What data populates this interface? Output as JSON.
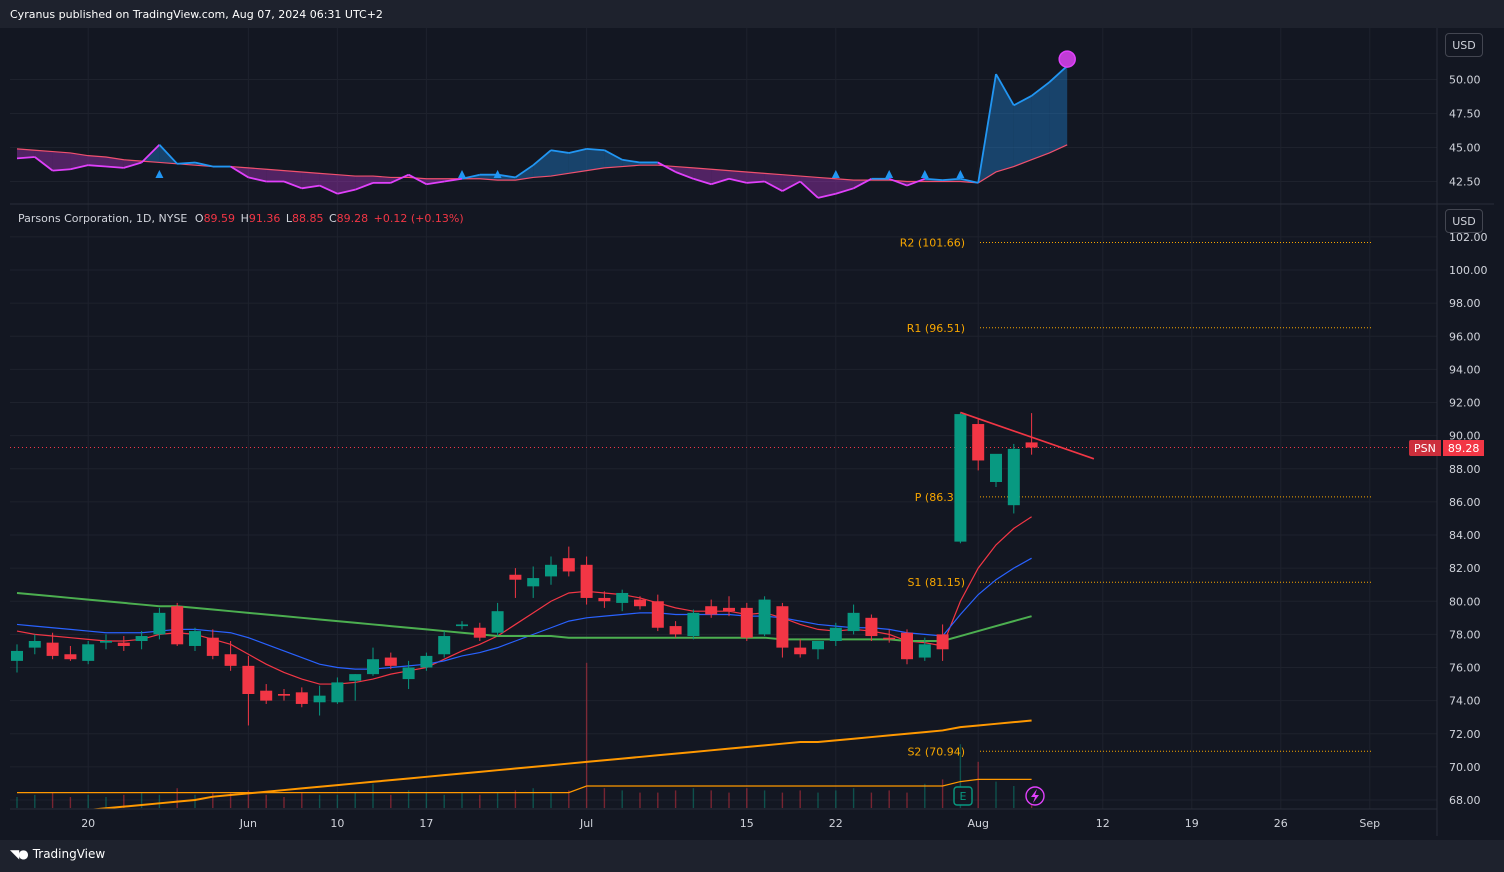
{
  "header": {
    "published": "Cyranus published on TradingView.com, Aug 07, 2024 06:31 UTC+2"
  },
  "footer": {
    "brand": "TradingView"
  },
  "colors": {
    "background": "#131722",
    "up": "#089981",
    "down": "#f23645",
    "pivot": "#f7a600",
    "ma_fast": "#f23645",
    "ma_mid": "#2962ff",
    "ma_slow": "#4caf50",
    "ma_long": "#ff9800",
    "indicator_blue": "#2196f3",
    "indicator_pink": "#e040fb"
  },
  "currency_labels": [
    "USD",
    "USD"
  ],
  "legend": {
    "name": "Parsons Corporation, 1D, NYSE",
    "o_label": "O",
    "o": "89.59",
    "h_label": "H",
    "h": "91.36",
    "l_label": "L",
    "l": "88.85",
    "c_label": "C",
    "c": "89.28",
    "change": "+0.12 (+0.13%)"
  },
  "price_tag": {
    "symbol": "PSN",
    "value": "89.28"
  },
  "chart_data": [
    {
      "type": "area",
      "panel": "indicator",
      "y_ticks": [
        "50.00",
        "47.50",
        "45.00",
        "42.50"
      ],
      "ylim": [
        41.5,
        52.5
      ],
      "series": [
        {
          "values": [
            44.2,
            44.3,
            43.3,
            43.4,
            43.7,
            43.6,
            43.5,
            43.9,
            45.2,
            43.8,
            43.9,
            43.6,
            43.6,
            42.8,
            42.5,
            42.5,
            42.0,
            42.2,
            41.6,
            41.9,
            42.4,
            42.4,
            43.0,
            42.3,
            42.5,
            42.7,
            43.0,
            43.0,
            42.8,
            43.7,
            44.8,
            44.6,
            44.9,
            44.8,
            44.1,
            43.9,
            43.9,
            43.2,
            42.7,
            42.3,
            42.7,
            42.4,
            42.5,
            41.8,
            42.5,
            41.3,
            41.6,
            42.0,
            42.7,
            42.7,
            42.2,
            42.7,
            42.6,
            42.7,
            42.4,
            50.4,
            48.1,
            48.8,
            49.8,
            51.0
          ]
        },
        {
          "values": [
            44.9,
            44.8,
            44.7,
            44.6,
            44.4,
            44.3,
            44.1,
            44.0,
            43.9,
            43.8,
            43.7,
            43.6,
            43.6,
            43.5,
            43.4,
            43.3,
            43.2,
            43.1,
            43.0,
            42.9,
            42.9,
            42.8,
            42.8,
            42.7,
            42.7,
            42.7,
            42.7,
            42.6,
            42.6,
            42.8,
            42.9,
            43.1,
            43.3,
            43.5,
            43.6,
            43.7,
            43.7,
            43.6,
            43.5,
            43.4,
            43.3,
            43.2,
            43.1,
            43.0,
            42.9,
            42.8,
            42.7,
            42.6,
            42.6,
            42.6,
            42.5,
            42.5,
            42.5,
            42.5,
            42.4,
            43.2,
            43.6,
            44.1,
            44.6,
            45.2
          ]
        }
      ],
      "signal_marker": {
        "index": 59,
        "value": 51.5
      }
    },
    {
      "type": "candlestick",
      "panel": "price",
      "y_ticks": [
        "102.00",
        "100.00",
        "98.00",
        "96.00",
        "94.00",
        "92.00",
        "90.00",
        "88.00",
        "86.00",
        "84.00",
        "82.00",
        "80.00",
        "78.00",
        "76.00",
        "74.00",
        "72.00",
        "70.00",
        "68.00"
      ],
      "ylim": [
        67.5,
        103.5
      ],
      "x_ticks": [
        "20",
        "Jun",
        "10",
        "17",
        "Jul",
        "15",
        "22",
        "Aug",
        "12",
        "19",
        "26",
        "Sep"
      ],
      "candles": [
        {
          "o": 76.4,
          "h": 77.4,
          "l": 75.7,
          "c": 77.0
        },
        {
          "o": 77.2,
          "h": 78.0,
          "l": 76.8,
          "c": 77.6
        },
        {
          "o": 77.5,
          "h": 78.1,
          "l": 76.5,
          "c": 76.7
        },
        {
          "o": 76.8,
          "h": 77.3,
          "l": 76.4,
          "c": 76.5
        },
        {
          "o": 76.4,
          "h": 77.6,
          "l": 76.2,
          "c": 77.4
        },
        {
          "o": 77.5,
          "h": 78.0,
          "l": 77.1,
          "c": 77.6
        },
        {
          "o": 77.5,
          "h": 77.9,
          "l": 77.0,
          "c": 77.3
        },
        {
          "o": 77.6,
          "h": 78.2,
          "l": 77.1,
          "c": 77.9
        },
        {
          "o": 78.0,
          "h": 79.6,
          "l": 77.7,
          "c": 79.3
        },
        {
          "o": 79.7,
          "h": 79.9,
          "l": 77.3,
          "c": 77.4
        },
        {
          "o": 77.3,
          "h": 78.4,
          "l": 77.0,
          "c": 78.2
        },
        {
          "o": 77.8,
          "h": 78.3,
          "l": 76.5,
          "c": 76.7
        },
        {
          "o": 76.8,
          "h": 77.6,
          "l": 75.8,
          "c": 76.1
        },
        {
          "o": 76.1,
          "h": 76.7,
          "l": 72.5,
          "c": 74.4
        },
        {
          "o": 74.6,
          "h": 75.0,
          "l": 73.8,
          "c": 74.0
        },
        {
          "o": 74.4,
          "h": 74.7,
          "l": 74.0,
          "c": 74.3
        },
        {
          "o": 74.5,
          "h": 74.8,
          "l": 73.6,
          "c": 73.8
        },
        {
          "o": 73.9,
          "h": 74.9,
          "l": 73.1,
          "c": 74.3
        },
        {
          "o": 73.9,
          "h": 75.4,
          "l": 73.8,
          "c": 75.1
        },
        {
          "o": 75.2,
          "h": 75.6,
          "l": 74.0,
          "c": 75.6
        },
        {
          "o": 75.6,
          "h": 77.2,
          "l": 75.5,
          "c": 76.5
        },
        {
          "o": 76.6,
          "h": 76.9,
          "l": 75.9,
          "c": 76.1
        },
        {
          "o": 75.3,
          "h": 76.4,
          "l": 74.7,
          "c": 76.0
        },
        {
          "o": 76.0,
          "h": 76.9,
          "l": 75.8,
          "c": 76.7
        },
        {
          "o": 76.8,
          "h": 78.2,
          "l": 76.6,
          "c": 77.9
        },
        {
          "o": 78.5,
          "h": 78.8,
          "l": 78.3,
          "c": 78.6
        },
        {
          "o": 78.4,
          "h": 78.7,
          "l": 77.6,
          "c": 77.8
        },
        {
          "o": 78.1,
          "h": 79.9,
          "l": 77.9,
          "c": 79.4
        },
        {
          "o": 81.6,
          "h": 82.0,
          "l": 80.2,
          "c": 81.3
        },
        {
          "o": 80.9,
          "h": 82.1,
          "l": 80.2,
          "c": 81.4
        },
        {
          "o": 81.5,
          "h": 82.7,
          "l": 81.0,
          "c": 82.2
        },
        {
          "o": 82.6,
          "h": 83.3,
          "l": 81.5,
          "c": 81.8
        },
        {
          "o": 82.2,
          "h": 82.7,
          "l": 79.8,
          "c": 80.2
        },
        {
          "o": 80.2,
          "h": 80.6,
          "l": 79.6,
          "c": 80.0
        },
        {
          "o": 79.9,
          "h": 80.7,
          "l": 79.4,
          "c": 80.5
        },
        {
          "o": 80.1,
          "h": 80.3,
          "l": 79.5,
          "c": 79.7
        },
        {
          "o": 80.0,
          "h": 80.4,
          "l": 78.2,
          "c": 78.4
        },
        {
          "o": 78.5,
          "h": 78.8,
          "l": 77.8,
          "c": 78.0
        },
        {
          "o": 77.9,
          "h": 79.5,
          "l": 77.7,
          "c": 79.3
        },
        {
          "o": 79.7,
          "h": 80.1,
          "l": 79.0,
          "c": 79.2
        },
        {
          "o": 79.6,
          "h": 80.3,
          "l": 79.1,
          "c": 79.4
        },
        {
          "o": 79.6,
          "h": 79.9,
          "l": 77.6,
          "c": 77.8
        },
        {
          "o": 78.0,
          "h": 80.3,
          "l": 77.9,
          "c": 80.1
        },
        {
          "o": 79.7,
          "h": 79.9,
          "l": 76.6,
          "c": 77.2
        },
        {
          "o": 77.2,
          "h": 77.7,
          "l": 76.6,
          "c": 76.8
        },
        {
          "o": 77.1,
          "h": 77.6,
          "l": 76.5,
          "c": 77.6
        },
        {
          "o": 77.6,
          "h": 78.7,
          "l": 77.3,
          "c": 78.4
        },
        {
          "o": 78.2,
          "h": 79.8,
          "l": 78.0,
          "c": 79.3
        },
        {
          "o": 79.0,
          "h": 79.2,
          "l": 77.6,
          "c": 77.9
        },
        {
          "o": 77.8,
          "h": 78.3,
          "l": 77.5,
          "c": 77.7
        },
        {
          "o": 78.1,
          "h": 78.3,
          "l": 76.2,
          "c": 76.5
        },
        {
          "o": 76.6,
          "h": 77.8,
          "l": 76.4,
          "c": 77.4
        },
        {
          "o": 78.0,
          "h": 78.6,
          "l": 76.4,
          "c": 77.1
        },
        {
          "o": 83.6,
          "h": 91.4,
          "l": 83.5,
          "c": 91.3
        },
        {
          "o": 90.7,
          "h": 91.0,
          "l": 87.9,
          "c": 88.5
        },
        {
          "o": 87.2,
          "h": 88.7,
          "l": 86.9,
          "c": 88.9
        },
        {
          "o": 85.8,
          "h": 89.5,
          "l": 85.3,
          "c": 89.2
        },
        {
          "o": 89.59,
          "h": 91.36,
          "l": 88.85,
          "c": 89.28
        }
      ],
      "moving_averages": [
        {
          "color": "#f23645",
          "values": [
            78.2,
            78.0,
            77.9,
            77.8,
            77.7,
            77.6,
            77.6,
            77.7,
            78.0,
            78.1,
            78.0,
            77.7,
            77.4,
            76.8,
            76.2,
            75.7,
            75.3,
            75.0,
            75.0,
            75.1,
            75.3,
            75.6,
            75.8,
            76.0,
            76.5,
            77.0,
            77.4,
            77.9,
            78.6,
            79.3,
            80.0,
            80.5,
            80.6,
            80.5,
            80.4,
            80.2,
            79.9,
            79.6,
            79.4,
            79.4,
            79.4,
            79.2,
            79.3,
            79.0,
            78.6,
            78.3,
            78.2,
            78.3,
            78.2,
            78.0,
            77.6,
            77.5,
            77.3,
            80.0,
            82.0,
            83.4,
            84.4,
            85.1
          ]
        },
        {
          "color": "#2962ff",
          "values": [
            78.6,
            78.5,
            78.4,
            78.3,
            78.2,
            78.1,
            78.1,
            78.1,
            78.2,
            78.3,
            78.3,
            78.2,
            78.1,
            77.8,
            77.4,
            77.0,
            76.6,
            76.2,
            76.0,
            75.9,
            75.9,
            76.0,
            76.1,
            76.2,
            76.4,
            76.7,
            76.9,
            77.2,
            77.6,
            78.0,
            78.4,
            78.8,
            79.0,
            79.1,
            79.2,
            79.3,
            79.3,
            79.2,
            79.2,
            79.2,
            79.2,
            79.1,
            79.1,
            79.0,
            78.8,
            78.6,
            78.5,
            78.4,
            78.4,
            78.3,
            78.1,
            78.0,
            77.9,
            79.2,
            80.4,
            81.3,
            82.0,
            82.6
          ]
        },
        {
          "color": "#4caf50",
          "values": [
            80.5,
            80.4,
            80.3,
            80.2,
            80.1,
            80.0,
            79.9,
            79.8,
            79.7,
            79.7,
            79.6,
            79.5,
            79.4,
            79.3,
            79.2,
            79.1,
            79.0,
            78.9,
            78.8,
            78.7,
            78.6,
            78.5,
            78.4,
            78.3,
            78.2,
            78.1,
            78.0,
            77.9,
            77.9,
            77.9,
            77.9,
            77.8,
            77.8,
            77.8,
            77.8,
            77.8,
            77.8,
            77.8,
            77.8,
            77.8,
            77.8,
            77.8,
            77.8,
            77.7,
            77.7,
            77.7,
            77.7,
            77.7,
            77.7,
            77.7,
            77.6,
            77.6,
            77.6,
            77.9,
            78.2,
            78.5,
            78.8,
            79.1
          ]
        },
        {
          "color": "#ff9800",
          "values": [
            67.0,
            67.1,
            67.2,
            67.3,
            67.4,
            67.5,
            67.6,
            67.7,
            67.8,
            67.9,
            68.0,
            68.2,
            68.3,
            68.4,
            68.5,
            68.6,
            68.7,
            68.8,
            68.9,
            69.0,
            69.1,
            69.2,
            69.3,
            69.4,
            69.5,
            69.6,
            69.7,
            69.8,
            69.9,
            70.0,
            70.1,
            70.2,
            70.3,
            70.4,
            70.5,
            70.6,
            70.7,
            70.8,
            70.9,
            71.0,
            71.1,
            71.2,
            71.3,
            71.4,
            71.5,
            71.5,
            71.6,
            71.7,
            71.8,
            71.9,
            72.0,
            72.1,
            72.2,
            72.4,
            72.5,
            72.6,
            72.7,
            72.8
          ]
        }
      ],
      "pivot_levels": [
        {
          "label": "R2 (101.66)",
          "value": 101.66
        },
        {
          "label": "R1 (96.51)",
          "value": 96.51
        },
        {
          "label": "P (86.30)",
          "value": 86.3
        },
        {
          "label": "S1 (81.15)",
          "value": 81.15
        },
        {
          "label": "S2 (70.94)",
          "value": 70.94
        }
      ],
      "last_price": 89.28,
      "trendline": {
        "from": {
          "index": 53,
          "value": 91.4
        },
        "to": {
          "index": 60.5,
          "value": 88.6
        }
      },
      "volume": [
        0.5,
        0.6,
        0.7,
        0.5,
        0.6,
        0.5,
        0.6,
        0.7,
        0.6,
        0.9,
        0.6,
        0.7,
        0.7,
        0.8,
        0.6,
        0.5,
        0.7,
        0.6,
        0.6,
        0.7,
        1.1,
        0.6,
        0.8,
        0.7,
        0.6,
        0.7,
        0.6,
        0.7,
        0.8,
        0.9,
        0.7,
        0.8,
        6.6,
        0.9,
        0.8,
        0.7,
        0.7,
        0.8,
        0.9,
        0.8,
        0.7,
        0.9,
        0.8,
        0.7,
        0.8,
        0.7,
        0.8,
        0.9,
        0.7,
        0.8,
        0.7,
        1.1,
        1.3,
        2.9,
        2.1,
        1.2,
        1.0,
        0.7
      ],
      "volume_ma": [
        0.7,
        0.7,
        0.7,
        0.7,
        0.7,
        0.7,
        0.7,
        0.7,
        0.7,
        0.7,
        0.7,
        0.7,
        0.7,
        0.7,
        0.7,
        0.7,
        0.7,
        0.7,
        0.7,
        0.7,
        0.7,
        0.7,
        0.7,
        0.7,
        0.7,
        0.7,
        0.7,
        0.7,
        0.7,
        0.7,
        0.7,
        0.7,
        1.0,
        1.0,
        1.0,
        1.0,
        1.0,
        1.0,
        1.0,
        1.0,
        1.0,
        1.0,
        1.0,
        1.0,
        1.0,
        1.0,
        1.0,
        1.0,
        1.0,
        1.0,
        1.0,
        1.0,
        1.0,
        1.2,
        1.3,
        1.3,
        1.3,
        1.3
      ],
      "event_icons": [
        "E",
        "lightning"
      ]
    }
  ]
}
